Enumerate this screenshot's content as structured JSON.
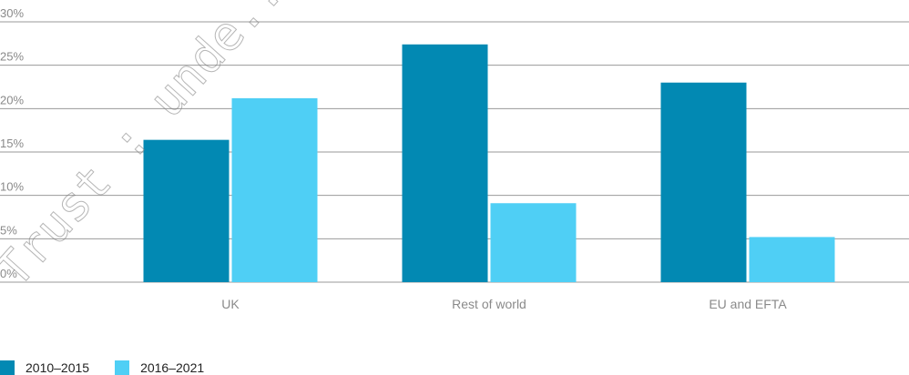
{
  "chart_data": {
    "type": "bar",
    "title": "",
    "xlabel": "",
    "ylabel": "",
    "categories": [
      "UK",
      "Rest of world",
      "EU and EFTA"
    ],
    "series": [
      {
        "name": "2010–2015",
        "values": [
          16.4,
          27.4,
          23.0
        ],
        "color": "#0289b3"
      },
      {
        "name": "2016–2021",
        "values": [
          21.2,
          9.1,
          5.2
        ],
        "color": "#4fcff5"
      }
    ],
    "ylim": [
      0,
      30
    ],
    "yticks": [
      0,
      5,
      10,
      15,
      20,
      25,
      30
    ],
    "ytick_labels": [
      "0%",
      "5%",
      "10%",
      "15%",
      "20%",
      "25%",
      "30%"
    ],
    "grid": true,
    "legend_position": "bottom-left"
  },
  "watermark": {
    "text": "Trust : unde..."
  }
}
